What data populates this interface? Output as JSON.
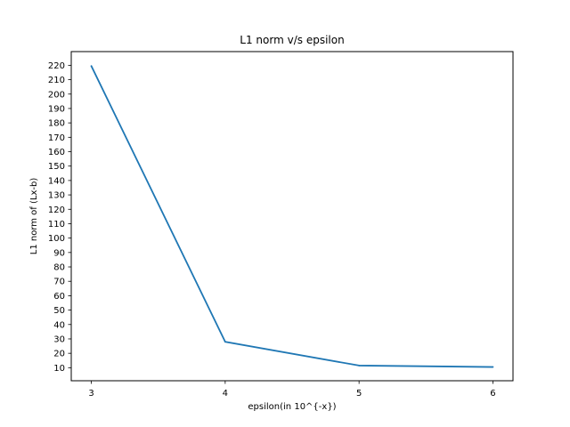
{
  "chart_data": {
    "type": "line",
    "title": "L1 norm v/s epsilon",
    "xlabel": "epsilon(in 10^{-x})",
    "ylabel": "L1 norm of (Lx-b)",
    "x": [
      3,
      4,
      5,
      6
    ],
    "series": [
      {
        "values": [
          219.5,
          28,
          11.5,
          10.5
        ],
        "color": "#1f77b4"
      }
    ],
    "xlim": [
      2.85,
      6.15
    ],
    "ylim": [
      0.95,
      229.5
    ],
    "xticks": [
      3,
      4,
      5,
      6
    ],
    "yticks": [
      10,
      20,
      30,
      40,
      50,
      60,
      70,
      80,
      90,
      100,
      110,
      120,
      130,
      140,
      150,
      160,
      170,
      180,
      190,
      200,
      210,
      220
    ],
    "grid": false,
    "legend": false
  }
}
